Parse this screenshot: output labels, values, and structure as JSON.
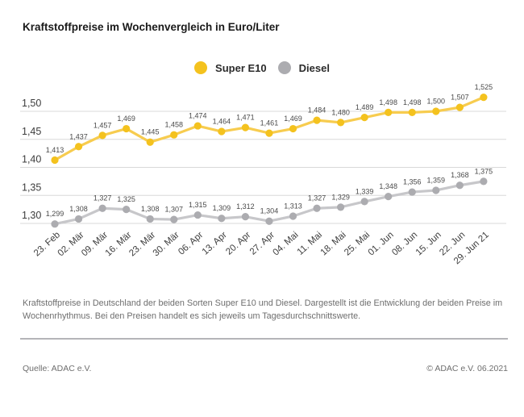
{
  "title": "Kraftstoffpreise im Wochenvergleich in Euro/Liter",
  "colors": {
    "super_e10_dot": "#F4C21E",
    "super_e10_line": "#F7CC4F",
    "diesel_dot": "#ACACB0",
    "diesel_line": "#C7C7CA",
    "grid": "#d8d8d8",
    "tick_text": "#3c3c3c",
    "data_label_text": "#4a4a4a",
    "footer_text": "#6e6e6e"
  },
  "chart_data": {
    "type": "line",
    "title": "Kraftstoffpreise im Wochenvergleich in Euro/Liter",
    "xlabel": "",
    "ylabel": "Euro/Liter",
    "grid": true,
    "legend_position": "top-center",
    "ylim": [
      1.275,
      1.545
    ],
    "categories": [
      "23. Feb",
      "02. Mär",
      "09. Mär",
      "16. Mär",
      "23. Mär",
      "30. Mär",
      "06. Apr",
      "13. Apr",
      "20. Apr",
      "27. Apr",
      "04. Mai",
      "11. Mai",
      "18. Mai",
      "25. Mai",
      "01. Jun",
      "08. Jun",
      "15. Jun",
      "22. Jun",
      "29. Jun 21"
    ],
    "yticks": [
      {
        "value": 1.5,
        "label": "1,50"
      },
      {
        "value": 1.45,
        "label": "1,45"
      },
      {
        "value": 1.4,
        "label": "1,40"
      },
      {
        "value": 1.35,
        "label": "1,35"
      },
      {
        "value": 1.3,
        "label": "1,30"
      }
    ],
    "series": [
      {
        "name": "Super E10",
        "values": [
          1.413,
          1.437,
          1.457,
          1.469,
          1.445,
          1.458,
          1.474,
          1.464,
          1.471,
          1.461,
          1.469,
          1.484,
          1.48,
          1.489,
          1.498,
          1.498,
          1.5,
          1.507,
          1.525
        ],
        "value_labels": [
          "1,413",
          "1,437",
          "1,457",
          "1,469",
          "1,445",
          "1,458",
          "1,474",
          "1,464",
          "1,471",
          "1,461",
          "1,469",
          "1,484",
          "1,480",
          "1,489",
          "1,498",
          "1,498",
          "1,500",
          "1,507",
          "1,525"
        ]
      },
      {
        "name": "Diesel",
        "values": [
          1.299,
          1.308,
          1.327,
          1.325,
          1.308,
          1.307,
          1.315,
          1.309,
          1.312,
          1.304,
          1.313,
          1.327,
          1.329,
          1.339,
          1.348,
          1.356,
          1.359,
          1.368,
          1.375
        ],
        "value_labels": [
          "1,299",
          "1,308",
          "1,327",
          "1,325",
          "1,308",
          "1,307",
          "1,315",
          "1,309",
          "1,312",
          "1,304",
          "1,313",
          "1,327",
          "1,329",
          "1,339",
          "1,348",
          "1,356",
          "1,359",
          "1,368",
          "1,375"
        ]
      }
    ]
  },
  "description": "Kraftstoffpreise in Deutschland der beiden Sorten Super E10 und Diesel. Dargestellt ist die Entwicklung der beiden Preise im Wochenrhythmus. Bei den Preisen handelt es sich jeweils um Tagesdurchschnittswerte.",
  "source": "Quelle: ADAC e.V.",
  "copyright": "© ADAC e.V. 06.2021"
}
